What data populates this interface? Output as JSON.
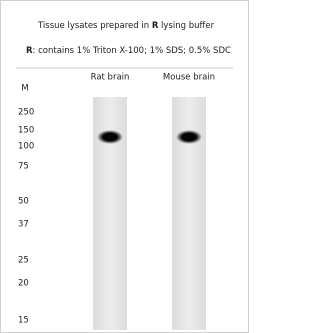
{
  "header": {
    "line1": {
      "before": "Tissue lysates prepared in ",
      "bold": "R",
      "after": " lysing buffer"
    },
    "line2": {
      "bold": "R",
      "after": ": contains 1% Triton X-100; 1% SDS; 0.5% SDC"
    }
  },
  "marker": {
    "label": "M",
    "sizes": [
      "250",
      "150",
      "100",
      "75",
      "50",
      "37",
      "25",
      "20",
      "15"
    ]
  },
  "lanes": [
    {
      "label": "Rat brain"
    },
    {
      "label": "Mouse brain"
    }
  ]
}
